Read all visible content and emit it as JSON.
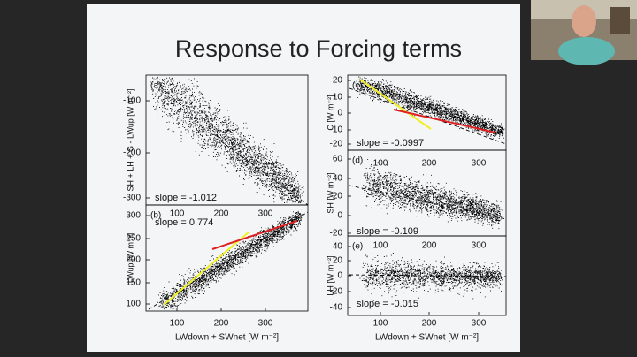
{
  "slide": {
    "title": "Response to Forcing terms",
    "columns": [
      {
        "xticks": [
          "100",
          "200",
          "300"
        ],
        "xlabel": "LWdown + SWnet [W m⁻²]",
        "panels": [
          {
            "label": "(a)",
            "ylabel": "SH + LH + G - LWup [W m⁻²]",
            "yticks": [
              "-100",
              "-200",
              "-300"
            ],
            "slope": "slope =  -1.012"
          },
          {
            "label": "(b)",
            "ylabel": "LWup [W m⁻²]",
            "yticks": [
              "300",
              "250",
              "200",
              "150",
              "100"
            ],
            "slope": "slope =   0.774"
          }
        ]
      },
      {
        "xticks": [
          "100",
          "200",
          "300"
        ],
        "xlabel": "LWdown + SWnet [W m⁻²]",
        "panels": [
          {
            "label": "(c)",
            "ylabel": "C [W m⁻²]",
            "yticks": [
              "20",
              "10",
              "0",
              "-10",
              "-20"
            ],
            "slope": "slope = -0.0997"
          },
          {
            "label": "(d)",
            "ylabel": "SH [W m⁻²]",
            "yticks": [
              "60",
              "40",
              "20",
              "0",
              "-20"
            ],
            "slope": "slope = -0.109"
          },
          {
            "label": "(e)",
            "ylabel": "LH [W m⁻²]",
            "yticks": [
              "40",
              "20",
              "0",
              "-20",
              "-40"
            ],
            "slope": "slope = -0.015"
          }
        ]
      }
    ]
  }
}
